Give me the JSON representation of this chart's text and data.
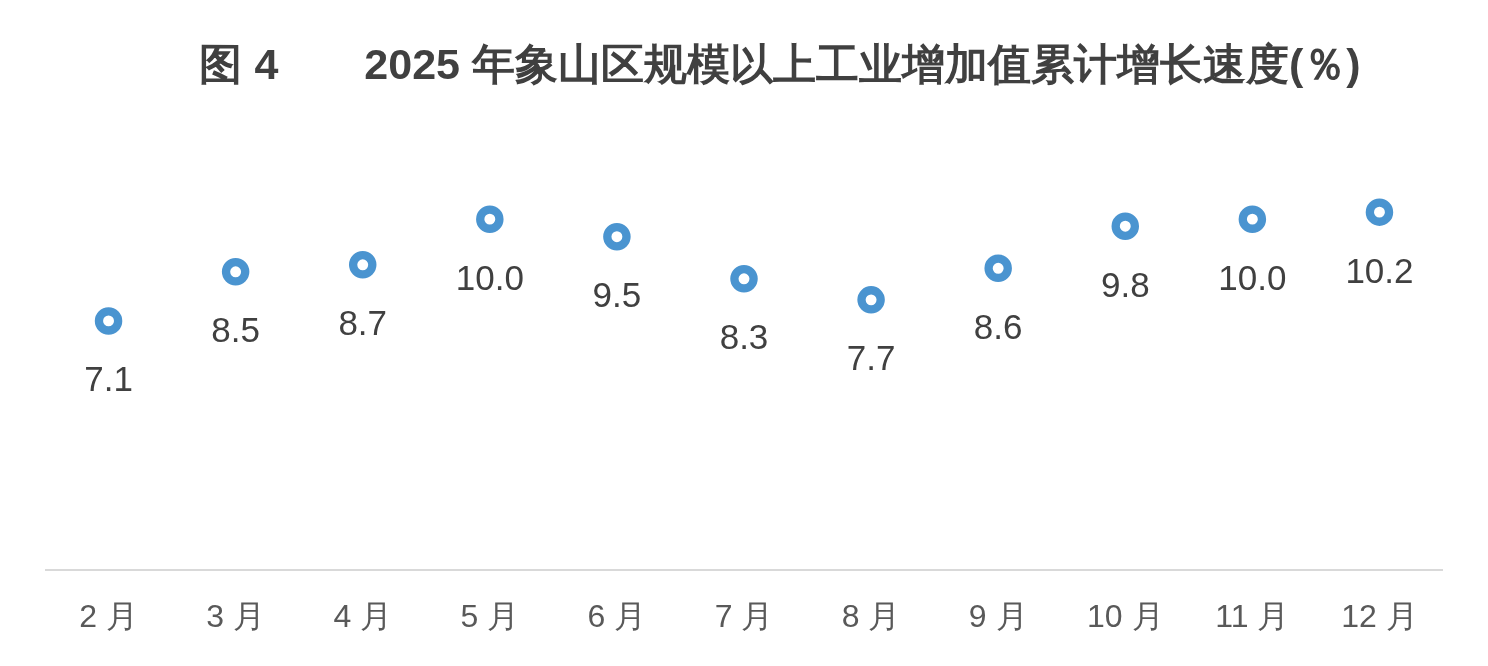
{
  "chart_data": {
    "type": "scatter",
    "title": "图 4　　2025 年象山区规模以上工业增加值累计增长速度(％)",
    "categories": [
      "2 月",
      "3 月",
      "4 月",
      "5 月",
      "6 月",
      "7 月",
      "8 月",
      "9 月",
      "10 月",
      "11 月",
      "12 月"
    ],
    "values": [
      7.1,
      8.5,
      8.7,
      10.0,
      9.5,
      8.3,
      7.7,
      8.6,
      9.8,
      10.0,
      10.2
    ],
    "value_labels": [
      "7.1",
      "8.5",
      "8.7",
      "10.0",
      "9.5",
      "8.3",
      "7.7",
      "8.6",
      "9.8",
      "10.0",
      "10.2"
    ],
    "color": "#4a94d0",
    "marker": "circle",
    "tick_labels": "x"
  }
}
